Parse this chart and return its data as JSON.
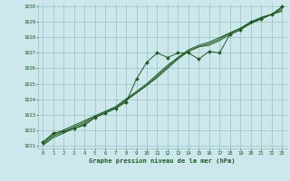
{
  "background_color": "#cde8ed",
  "plot_bg_color": "#cde8ed",
  "grid_color": "#9bbfc4",
  "line_color": "#1a5c1a",
  "title": "Graphe pression niveau de la mer (hPa)",
  "xlim": [
    -0.5,
    23.5
  ],
  "ylim": [
    1020.8,
    1030.2
  ],
  "yticks": [
    1021,
    1022,
    1023,
    1024,
    1025,
    1026,
    1027,
    1028,
    1029,
    1030
  ],
  "xticks": [
    0,
    1,
    2,
    3,
    4,
    5,
    6,
    7,
    8,
    9,
    10,
    11,
    12,
    13,
    14,
    15,
    16,
    17,
    18,
    19,
    20,
    21,
    22,
    23
  ],
  "series_markers": [
    1021.2,
    1021.8,
    1021.9,
    1022.1,
    1022.3,
    1022.8,
    1023.1,
    1023.4,
    1023.8,
    1025.3,
    1026.4,
    1027.0,
    1026.7,
    1027.0,
    1027.0,
    1026.6,
    1027.1,
    1027.0,
    1028.2,
    1028.5,
    1029.0,
    1029.2,
    1029.5,
    1030.0
  ],
  "series_line1": [
    1021.2,
    1021.7,
    1022.0,
    1022.3,
    1022.6,
    1022.9,
    1023.2,
    1023.5,
    1024.0,
    1024.5,
    1025.0,
    1025.6,
    1026.2,
    1026.7,
    1027.2,
    1027.5,
    1027.7,
    1028.0,
    1028.3,
    1028.6,
    1029.0,
    1029.3,
    1029.5,
    1029.9
  ],
  "series_line2": [
    1021.1,
    1021.6,
    1021.9,
    1022.2,
    1022.5,
    1022.9,
    1023.2,
    1023.5,
    1024.0,
    1024.4,
    1024.9,
    1025.5,
    1026.1,
    1026.7,
    1027.1,
    1027.4,
    1027.6,
    1027.9,
    1028.3,
    1028.6,
    1029.0,
    1029.3,
    1029.5,
    1029.8
  ],
  "series_line3": [
    1021.0,
    1021.5,
    1021.8,
    1022.1,
    1022.4,
    1022.8,
    1023.1,
    1023.4,
    1023.9,
    1024.4,
    1024.9,
    1025.4,
    1026.0,
    1026.6,
    1027.1,
    1027.4,
    1027.5,
    1027.8,
    1028.2,
    1028.5,
    1028.9,
    1029.2,
    1029.5,
    1029.7
  ]
}
